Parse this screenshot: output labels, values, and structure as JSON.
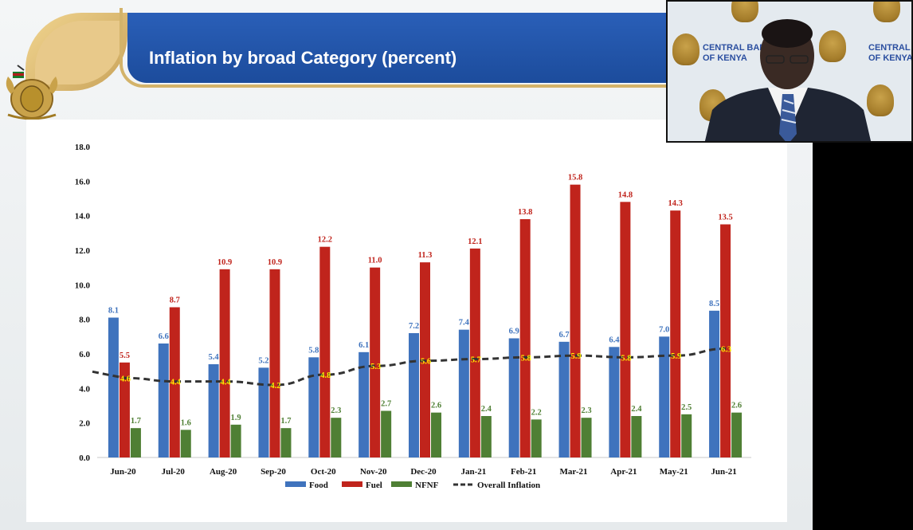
{
  "slide": {
    "title": "Inflation by broad Category (percent)"
  },
  "logo": {
    "name": "central-bank-coat-of-arms",
    "text": "CENTRAL BANK OF KENYA"
  },
  "webcam": {
    "backdrop_text_left": "CENTRAL BANK\nOF KENYA",
    "backdrop_text_right": "CENTRAL BAN\nOF KENYA"
  },
  "colors": {
    "food": "#3f73bd",
    "fuel": "#c0241c",
    "nfnf": "#4f7f34",
    "overall": "#333333",
    "overall_label": "#ffee00",
    "banner": "#1f4fa0",
    "gold": "#d3b36a"
  },
  "chart_data": {
    "type": "bar",
    "categories": [
      "Jun-20",
      "Jul-20",
      "Aug-20",
      "Sep-20",
      "Oct-20",
      "Nov-20",
      "Dec-20",
      "Jan-21",
      "Feb-21",
      "Mar-21",
      "Apr-21",
      "May-21",
      "Jun-21"
    ],
    "series": [
      {
        "name": "Food",
        "type": "bar",
        "color": "#3f73bd",
        "values": [
          8.1,
          6.6,
          5.4,
          5.2,
          5.8,
          6.1,
          7.2,
          7.4,
          6.9,
          6.7,
          6.4,
          7.0,
          8.5
        ]
      },
      {
        "name": "Fuel",
        "type": "bar",
        "color": "#c0241c",
        "values": [
          5.5,
          8.7,
          10.9,
          10.9,
          12.2,
          11.0,
          11.3,
          12.1,
          13.8,
          15.8,
          14.8,
          14.3,
          13.5
        ]
      },
      {
        "name": "NFNF",
        "type": "bar",
        "color": "#4f7f34",
        "values": [
          1.7,
          1.6,
          1.9,
          1.7,
          2.3,
          2.7,
          2.6,
          2.4,
          2.2,
          2.3,
          2.4,
          2.5,
          2.6
        ]
      },
      {
        "name": "Overall Inflation",
        "type": "line",
        "style": "dashed",
        "color": "#333333",
        "values": [
          4.6,
          4.4,
          4.4,
          4.2,
          4.8,
          5.3,
          5.6,
          5.7,
          5.8,
          5.9,
          5.8,
          5.9,
          6.3
        ]
      }
    ],
    "yticks": [
      "0.0",
      "2.0",
      "4.0",
      "6.0",
      "8.0",
      "10.0",
      "12.0",
      "14.0",
      "16.0",
      "18.0"
    ],
    "ylim": [
      0,
      18
    ],
    "title": "",
    "xlabel": "",
    "ylabel": "",
    "legend": "bottom",
    "grid": false
  }
}
